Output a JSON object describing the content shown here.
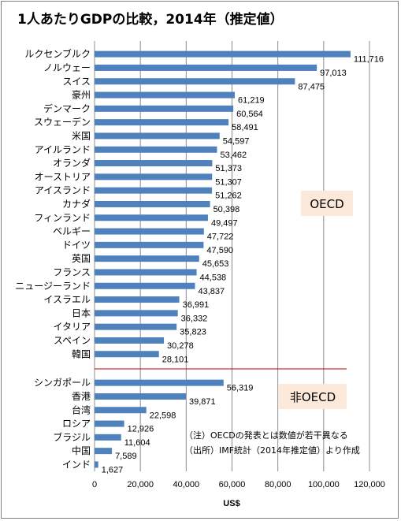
{
  "chart_data": {
    "type": "bar",
    "orientation": "horizontal",
    "title": "1人あたりGDPの比較，2014年（推定値）",
    "xlabel": "US$",
    "ylabel": "",
    "xlim": [
      0,
      120000
    ],
    "xticks": [
      "0",
      "20,000",
      "40,000",
      "60,000",
      "80,000",
      "100,000",
      "120,000"
    ],
    "grid": true,
    "bar_color": "#4f81bd",
    "groups": [
      {
        "label": "OECD",
        "categories": [
          "ルクセンブルク",
          "ノルウェー",
          "スイス",
          "豪州",
          "デンマーク",
          "スウェーデン",
          "米国",
          "アイルランド",
          "オランダ",
          "オーストリア",
          "アイスランド",
          "カナダ",
          "フィンランド",
          "ベルギー",
          "ドイツ",
          "英国",
          "フランス",
          "ニュージーランド",
          "イスラエル",
          "日本",
          "イタリア",
          "スペイン",
          "韓国"
        ],
        "values": [
          111716,
          97013,
          87475,
          61219,
          60564,
          58491,
          54597,
          53462,
          51373,
          51307,
          51262,
          50398,
          49497,
          47722,
          47590,
          45653,
          44538,
          43837,
          36991,
          36332,
          35823,
          30278,
          28101
        ],
        "value_labels": [
          "111,716",
          "97,013",
          "87,475",
          "61,219",
          "60,564",
          "58,491",
          "54,597",
          "53,462",
          "51,373",
          "51,307",
          "51,262",
          "50,398",
          "49,497",
          "47,722",
          "47,590",
          "45,653",
          "44,538",
          "43,837",
          "36,991",
          "36,332",
          "35,823",
          "30,278",
          "28,101"
        ]
      },
      {
        "label": "非OECD",
        "categories": [
          "シンガポール",
          "香港",
          "台湾",
          "ロシア",
          "ブラジル",
          "中国",
          "インド"
        ],
        "values": [
          56319,
          39871,
          22598,
          12926,
          11604,
          7589,
          1627
        ],
        "value_labels": [
          "56,319",
          "39,871",
          "22,598",
          "12,926",
          "11,604",
          "7,589",
          "1,627"
        ]
      }
    ],
    "notes": [
      "（注）OECDの発表とは数値が若干異なる",
      "（出所）IMF統計（2014年推定値）より作成"
    ]
  }
}
